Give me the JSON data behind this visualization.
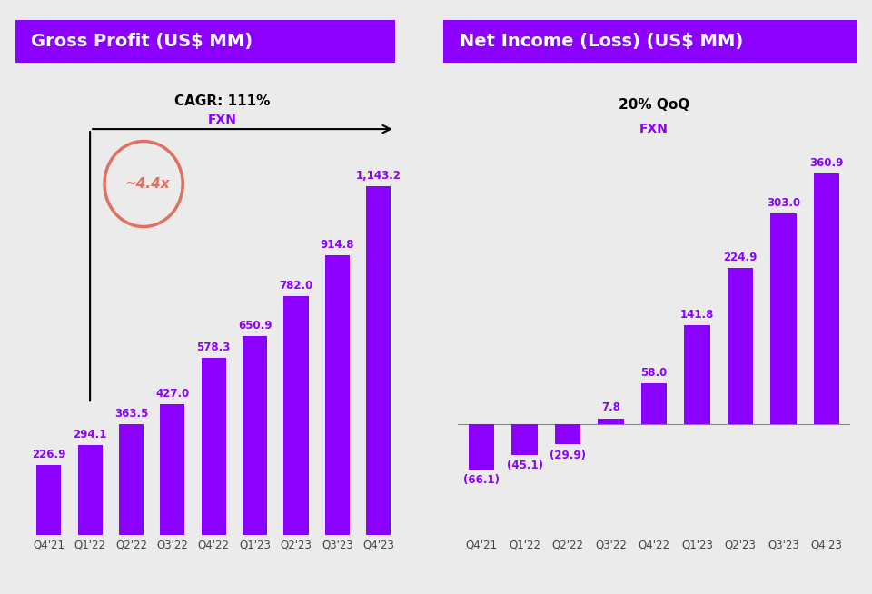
{
  "left_title": "Gross Profit (US$ MM)",
  "right_title": "Net Income (Loss) (US$ MM)",
  "left_cagr_text": "CAGR: 111%",
  "left_fxn_text": "FXN",
  "right_qoq_text": "20% QoQ",
  "right_fxn_text": "FXN",
  "circle_text": "~4.4x",
  "left_categories": [
    "Q4'21",
    "Q1'22",
    "Q2'22",
    "Q3'22",
    "Q4'22",
    "Q1'23",
    "Q2'23",
    "Q3'23",
    "Q4'23"
  ],
  "left_values": [
    226.9,
    294.1,
    363.5,
    427.0,
    578.3,
    650.9,
    782.0,
    914.8,
    1143.2
  ],
  "right_categories": [
    "Q4'21",
    "Q1'22",
    "Q2'22",
    "Q3'22",
    "Q4'22",
    "Q1'23",
    "Q2'23",
    "Q3'23",
    "Q4'23"
  ],
  "right_values": [
    -66.1,
    -45.1,
    -29.9,
    7.8,
    58.0,
    141.8,
    224.9,
    303.0,
    360.9
  ],
  "bar_color": "#8B00FF",
  "title_bg_color": "#8B00FF",
  "title_text_color": "#ffffff",
  "label_color": "#8B00FF",
  "bg_color": "#EBEBEB",
  "circle_color": "#E07060",
  "title_fontsize": 14,
  "label_fontsize": 8.5,
  "tick_fontsize": 8.5
}
